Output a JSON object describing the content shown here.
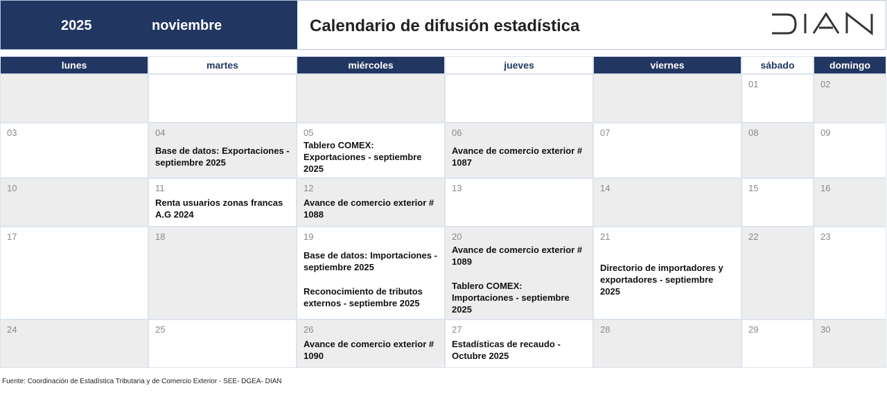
{
  "header": {
    "year": "2025",
    "month": "noviembre",
    "title": "Calendario de difusión estadística",
    "logo": "DIAN"
  },
  "colors": {
    "navy": "#213762",
    "gray": "#ededed"
  },
  "weekdays": [
    "lunes",
    "martes",
    "miércoles",
    "jueves",
    "viernes",
    "sábado",
    "domingo"
  ],
  "weeks": [
    [
      {
        "day": "",
        "events": []
      },
      {
        "day": "",
        "events": []
      },
      {
        "day": "",
        "events": []
      },
      {
        "day": "",
        "events": []
      },
      {
        "day": "",
        "events": []
      },
      {
        "day": "01",
        "events": []
      },
      {
        "day": "02",
        "events": []
      }
    ],
    [
      {
        "day": "03",
        "events": []
      },
      {
        "day": "04",
        "events": [
          "Base de datos: Exportaciones - septiembre 2025"
        ]
      },
      {
        "day": "05",
        "events": [
          "Tablero COMEX: Exportaciones - septiembre 2025"
        ]
      },
      {
        "day": "06",
        "events": [
          "Avance de comercio exterior # 1087"
        ]
      },
      {
        "day": "07",
        "events": []
      },
      {
        "day": "08",
        "events": []
      },
      {
        "day": "09",
        "events": []
      }
    ],
    [
      {
        "day": "10",
        "events": []
      },
      {
        "day": "11",
        "events": [
          "Renta usuarios zonas francas A.G 2024"
        ]
      },
      {
        "day": "12",
        "events": [
          "Avance de comercio exterior # 1088"
        ]
      },
      {
        "day": "13",
        "events": []
      },
      {
        "day": "14",
        "events": []
      },
      {
        "day": "15",
        "events": []
      },
      {
        "day": "16",
        "events": []
      }
    ],
    [
      {
        "day": "17",
        "events": []
      },
      {
        "day": "18",
        "events": []
      },
      {
        "day": "19",
        "events": [
          "Base de datos: Importaciones - septiembre 2025",
          "Reconocimiento de tributos externos  - septiembre 2025"
        ]
      },
      {
        "day": "20",
        "events": [
          "Avance de comercio exterior # 1089",
          "Tablero COMEX: Importaciones - septiembre 2025"
        ]
      },
      {
        "day": "21",
        "events": [
          "Directorio de importadores y exportadores - septiembre 2025"
        ]
      },
      {
        "day": "22",
        "events": []
      },
      {
        "day": "23",
        "events": []
      }
    ],
    [
      {
        "day": "24",
        "events": []
      },
      {
        "day": "25",
        "events": []
      },
      {
        "day": "26",
        "events": [
          "Avance de comercio exterior # 1090"
        ]
      },
      {
        "day": "27",
        "events": [
          "Estadísticas de recaudo - Octubre 2025"
        ]
      },
      {
        "day": "28",
        "events": []
      },
      {
        "day": "29",
        "events": []
      },
      {
        "day": "30",
        "events": []
      }
    ]
  ],
  "footer": "Fuente: Coordinación de Estadística Tributaria y de Comercio Exterior - SEE- DGEA- DIAN"
}
